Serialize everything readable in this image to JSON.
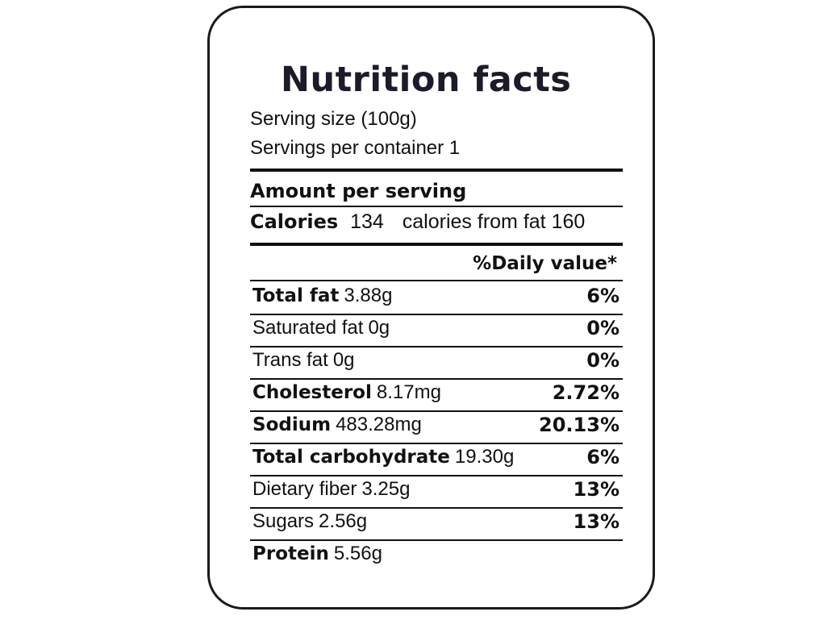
{
  "title": "Nutrition facts",
  "serving_size": "Serving size (100g)",
  "servings_per_container": "Servings per container 1",
  "amount_per_serving": "Amount per serving",
  "calories": {
    "label": "Calories",
    "value": "134",
    "from_fat_label": "calories from fat",
    "from_fat_value": "160"
  },
  "daily_value_header": "%Daily value*",
  "nutrients": [
    {
      "name": "Total fat",
      "amount": "3.88g",
      "dv": "6%"
    },
    {
      "name": "Saturated fat",
      "amount": "0g",
      "dv": "0%"
    },
    {
      "name": "Trans fat",
      "amount": "0g",
      "dv": "0%"
    },
    {
      "name": "Cholesterol",
      "amount": "8.17mg",
      "dv": "2.72%"
    },
    {
      "name": "Sodium",
      "amount": "483.28mg",
      "dv": "20.13%"
    },
    {
      "name": "Total carbohydrate",
      "amount": "19.30g",
      "dv": "6%"
    },
    {
      "name": "Dietary fiber",
      "amount": "3.25g",
      "dv": "13%"
    },
    {
      "name": "Sugars",
      "amount": "2.56g",
      "dv": "13%"
    },
    {
      "name": "Protein",
      "amount": "5.56g",
      "dv": ""
    }
  ]
}
